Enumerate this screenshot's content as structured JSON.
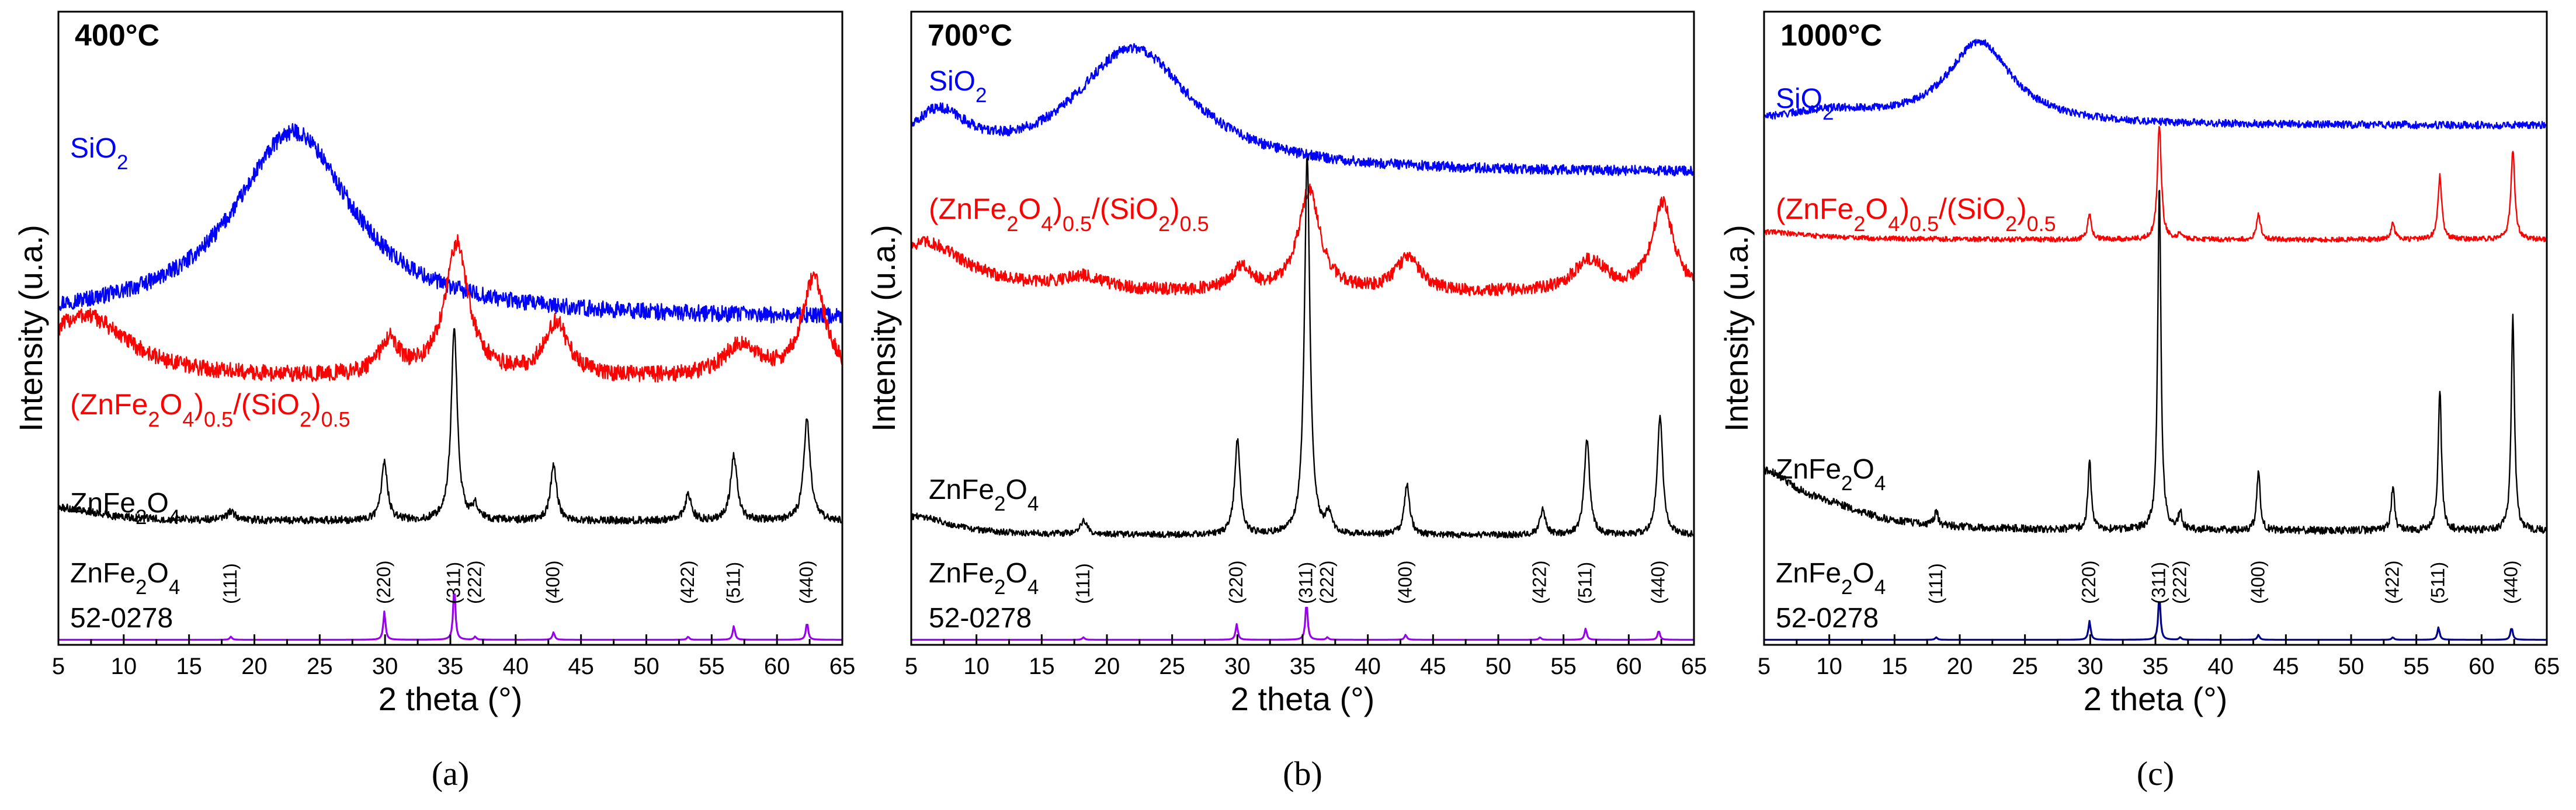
{
  "chart_data": [
    {
      "type": "line",
      "panel_label": "(a)",
      "temperature_label": "400°C",
      "xlabel": "2 theta (°)",
      "ylabel": "Intensity (u.a.)",
      "xlim": [
        5,
        65
      ],
      "x_ticks": [
        5,
        10,
        15,
        20,
        25,
        30,
        35,
        40,
        45,
        50,
        55,
        60,
        65
      ],
      "series": [
        {
          "name": "SiO2",
          "label_parts": [
            {
              "t": "SiO"
            },
            {
              "t": "2",
              "sub": true
            }
          ],
          "color": "#0000ff",
          "baseline": 0.515,
          "noise": 0.013,
          "peaks": [
            {
              "x": 23,
              "h": 0.295,
              "w": 5.5
            }
          ]
        },
        {
          "name": "(ZnFe2O4)0.5/(SiO2)0.5",
          "label_parts": [
            {
              "t": "(ZnFe"
            },
            {
              "t": "2",
              "sub": true
            },
            {
              "t": "O"
            },
            {
              "t": "4",
              "sub": true
            },
            {
              "t": ")"
            },
            {
              "t": "0.5",
              "sub": true
            },
            {
              "t": "/(SiO"
            },
            {
              "t": "2",
              "sub": true
            },
            {
              "t": ")"
            },
            {
              "t": "0.5",
              "sub": true
            }
          ],
          "color": "#ff0000",
          "baseline": 0.42,
          "noise": 0.013,
          "peaks": [
            {
              "x": 7,
              "h": 0.1,
              "w": 4
            },
            {
              "x": 30.3,
              "h": 0.055,
              "w": 0.9
            },
            {
              "x": 35.5,
              "h": 0.21,
              "w": 1.1
            },
            {
              "x": 43.1,
              "h": 0.085,
              "w": 1.1
            },
            {
              "x": 57.2,
              "h": 0.05,
              "w": 1.6
            },
            {
              "x": 62.8,
              "h": 0.155,
              "w": 1.1
            }
          ]
        },
        {
          "name": "ZnFe2O4",
          "label_parts": [
            {
              "t": "ZnFe"
            },
            {
              "t": "2",
              "sub": true
            },
            {
              "t": "O"
            },
            {
              "t": "4",
              "sub": true
            }
          ],
          "color": "#000000",
          "baseline": 0.196,
          "noise": 0.006,
          "peaks": [
            {
              "x": 5.5,
              "h": 0.02,
              "w": 3
            },
            {
              "x": 18.2,
              "h": 0.014,
              "w": 0.35
            },
            {
              "x": 29.95,
              "h": 0.093,
              "w": 0.28
            },
            {
              "x": 35.3,
              "h": 0.305,
              "w": 0.28
            },
            {
              "x": 36.9,
              "h": 0.022,
              "w": 0.28
            },
            {
              "x": 42.9,
              "h": 0.088,
              "w": 0.28
            },
            {
              "x": 53.2,
              "h": 0.04,
              "w": 0.3
            },
            {
              "x": 56.7,
              "h": 0.103,
              "w": 0.3
            },
            {
              "x": 62.3,
              "h": 0.16,
              "w": 0.3
            }
          ]
        },
        {
          "name": "ZnFe2O4 52-0278 reference",
          "color": "#9900ee",
          "baseline": 0.008,
          "noise": 0,
          "peaks": [
            {
              "x": 18.2,
              "h": 0.005,
              "w": 0.1
            },
            {
              "x": 29.95,
              "h": 0.045,
              "w": 0.1
            },
            {
              "x": 35.3,
              "h": 0.085,
              "w": 0.1
            },
            {
              "x": 36.9,
              "h": 0.005,
              "w": 0.1
            },
            {
              "x": 42.9,
              "h": 0.012,
              "w": 0.1
            },
            {
              "x": 53.2,
              "h": 0.005,
              "w": 0.1
            },
            {
              "x": 56.7,
              "h": 0.022,
              "w": 0.1
            },
            {
              "x": 62.3,
              "h": 0.028,
              "w": 0.1
            }
          ]
        }
      ],
      "reference_label_parts": [
        {
          "t": "ZnFe"
        },
        {
          "t": "2",
          "sub": true
        },
        {
          "t": "O"
        },
        {
          "t": "4",
          "sub": true
        }
      ],
      "reference_code": "52-0278",
      "reflections": [
        {
          "x": 18.2,
          "label": "(111)"
        },
        {
          "x": 29.95,
          "label": "(220)"
        },
        {
          "x": 35.3,
          "label": "(311)"
        },
        {
          "x": 36.9,
          "label": "(222)"
        },
        {
          "x": 42.9,
          "label": "(400)"
        },
        {
          "x": 53.2,
          "label": "(422)"
        },
        {
          "x": 56.7,
          "label": "(511)"
        },
        {
          "x": 62.3,
          "label": "(440)"
        }
      ]
    },
    {
      "type": "line",
      "panel_label": "(b)",
      "temperature_label": "700°C",
      "xlabel": "2 theta (°)",
      "ylabel": "Intensity (u.a.)",
      "xlim": [
        5,
        65
      ],
      "x_ticks": [
        5,
        10,
        15,
        20,
        25,
        30,
        35,
        40,
        45,
        50,
        55,
        60,
        65
      ],
      "series": [
        {
          "name": "SiO2",
          "label_parts": [
            {
              "t": "SiO"
            },
            {
              "t": "2",
              "sub": true
            }
          ],
          "color": "#0000ff",
          "baseline": 0.745,
          "noise": 0.008,
          "peaks": [
            {
              "x": 7,
              "h": 0.08,
              "w": 3
            },
            {
              "x": 22,
              "h": 0.195,
              "w": 5.5
            }
          ]
        },
        {
          "name": "(ZnFe2O4)0.5/(SiO2)0.5",
          "label_parts": [
            {
              "t": "(ZnFe"
            },
            {
              "t": "2",
              "sub": true
            },
            {
              "t": "O"
            },
            {
              "t": "4",
              "sub": true
            },
            {
              "t": ")"
            },
            {
              "t": "0.5",
              "sub": true
            },
            {
              "t": "/(SiO"
            },
            {
              "t": "2",
              "sub": true
            },
            {
              "t": ")"
            },
            {
              "t": "0.5",
              "sub": true
            }
          ],
          "color": "#ff0000",
          "baseline": 0.555,
          "noise": 0.01,
          "peaks": [
            {
              "x": 6,
              "h": 0.08,
              "w": 4
            },
            {
              "x": 18,
              "h": 0.02,
              "w": 2
            },
            {
              "x": 30.3,
              "h": 0.035,
              "w": 0.9
            },
            {
              "x": 35.5,
              "h": 0.16,
              "w": 1.0
            },
            {
              "x": 43.1,
              "h": 0.055,
              "w": 1.1
            },
            {
              "x": 57,
              "h": 0.05,
              "w": 1.5
            },
            {
              "x": 62.6,
              "h": 0.14,
              "w": 1.0
            }
          ]
        },
        {
          "name": "ZnFe2O4",
          "label_parts": [
            {
              "t": "ZnFe"
            },
            {
              "t": "2",
              "sub": true
            },
            {
              "t": "O"
            },
            {
              "t": "4",
              "sub": true
            }
          ],
          "color": "#000000",
          "baseline": 0.173,
          "noise": 0.005,
          "peaks": [
            {
              "x": 5.5,
              "h": 0.03,
              "w": 3
            },
            {
              "x": 18.2,
              "h": 0.02,
              "w": 0.35
            },
            {
              "x": 30,
              "h": 0.15,
              "w": 0.25
            },
            {
              "x": 35.35,
              "h": 0.6,
              "w": 0.25
            },
            {
              "x": 37,
              "h": 0.03,
              "w": 0.25
            },
            {
              "x": 43,
              "h": 0.08,
              "w": 0.25
            },
            {
              "x": 53.4,
              "h": 0.04,
              "w": 0.25
            },
            {
              "x": 56.8,
              "h": 0.15,
              "w": 0.25
            },
            {
              "x": 62.4,
              "h": 0.19,
              "w": 0.25
            }
          ]
        },
        {
          "name": "ZnFe2O4 52-0278 reference",
          "color": "#9900ee",
          "baseline": 0.008,
          "noise": 0,
          "peaks": [
            {
              "x": 18.2,
              "h": 0.004,
              "w": 0.1
            },
            {
              "x": 29.95,
              "h": 0.025,
              "w": 0.1
            },
            {
              "x": 35.3,
              "h": 0.06,
              "w": 0.1
            },
            {
              "x": 36.9,
              "h": 0.004,
              "w": 0.1
            },
            {
              "x": 42.9,
              "h": 0.008,
              "w": 0.1
            },
            {
              "x": 53.2,
              "h": 0.004,
              "w": 0.1
            },
            {
              "x": 56.7,
              "h": 0.018,
              "w": 0.1
            },
            {
              "x": 62.3,
              "h": 0.015,
              "w": 0.1
            }
          ]
        }
      ],
      "reference_label_parts": [
        {
          "t": "ZnFe"
        },
        {
          "t": "2",
          "sub": true
        },
        {
          "t": "O"
        },
        {
          "t": "4",
          "sub": true
        }
      ],
      "reference_code": "52-0278",
      "reflections": [
        {
          "x": 18.2,
          "label": "(111)"
        },
        {
          "x": 29.95,
          "label": "(220)"
        },
        {
          "x": 35.3,
          "label": "(311)"
        },
        {
          "x": 36.9,
          "label": "(222)"
        },
        {
          "x": 42.9,
          "label": "(400)"
        },
        {
          "x": 53.2,
          "label": "(422)"
        },
        {
          "x": 56.7,
          "label": "(511)"
        },
        {
          "x": 62.3,
          "label": "(440)"
        }
      ]
    },
    {
      "type": "line",
      "panel_label": "(c)",
      "temperature_label": "1000°C",
      "xlabel": "2 theta (°)",
      "ylabel": "Intensity (u.a.)",
      "xlim": [
        5,
        65
      ],
      "x_ticks": [
        5,
        10,
        15,
        20,
        25,
        30,
        35,
        40,
        45,
        50,
        55,
        60,
        65
      ],
      "series": [
        {
          "name": "SiO2",
          "label_parts": [
            {
              "t": "SiO"
            },
            {
              "t": "2",
              "sub": true
            }
          ],
          "color": "#0000ff",
          "baseline": 0.82,
          "noise": 0.006,
          "peaks": [
            {
              "x": 21.5,
              "h": 0.13,
              "w": 3
            },
            {
              "x": 10,
              "h": 0.02,
              "w": 5
            }
          ]
        },
        {
          "name": "(ZnFe2O4)0.5/(SiO2)0.5",
          "label_parts": [
            {
              "t": "(ZnFe"
            },
            {
              "t": "2",
              "sub": true
            },
            {
              "t": "O"
            },
            {
              "t": "4",
              "sub": true
            },
            {
              "t": ")"
            },
            {
              "t": "0.5",
              "sub": true
            },
            {
              "t": "/(SiO"
            },
            {
              "t": "2",
              "sub": true
            },
            {
              "t": ")"
            },
            {
              "t": "0.5",
              "sub": true
            }
          ],
          "color": "#ff0000",
          "baseline": 0.64,
          "noise": 0.004,
          "peaks": [
            {
              "x": 5,
              "h": 0.012,
              "w": 4
            },
            {
              "x": 29.95,
              "h": 0.04,
              "w": 0.18
            },
            {
              "x": 35.3,
              "h": 0.18,
              "w": 0.18
            },
            {
              "x": 36.9,
              "h": 0.01,
              "w": 0.18
            },
            {
              "x": 42.9,
              "h": 0.04,
              "w": 0.18
            },
            {
              "x": 53.2,
              "h": 0.025,
              "w": 0.18
            },
            {
              "x": 56.8,
              "h": 0.1,
              "w": 0.18
            },
            {
              "x": 62.4,
              "h": 0.14,
              "w": 0.18
            }
          ]
        },
        {
          "name": "ZnFe2O4",
          "label_parts": [
            {
              "t": "ZnFe"
            },
            {
              "t": "2",
              "sub": true
            },
            {
              "t": "O"
            },
            {
              "t": "4",
              "sub": true
            }
          ],
          "color": "#000000",
          "baseline": 0.18,
          "noise": 0.006,
          "peaks": [
            {
              "x": 5,
              "h": 0.085,
              "w": 3
            },
            {
              "x": 10,
              "h": 0.025,
              "w": 4
            },
            {
              "x": 18.2,
              "h": 0.02,
              "w": 0.2
            },
            {
              "x": 29.95,
              "h": 0.11,
              "w": 0.15
            },
            {
              "x": 35.3,
              "h": 0.54,
              "w": 0.15
            },
            {
              "x": 36.9,
              "h": 0.03,
              "w": 0.15
            },
            {
              "x": 42.9,
              "h": 0.095,
              "w": 0.15
            },
            {
              "x": 53.2,
              "h": 0.07,
              "w": 0.15
            },
            {
              "x": 56.8,
              "h": 0.225,
              "w": 0.15
            },
            {
              "x": 62.4,
              "h": 0.34,
              "w": 0.15
            }
          ]
        },
        {
          "name": "ZnFe2O4 52-0278 reference",
          "color": "#00008b",
          "baseline": 0.008,
          "noise": 0,
          "peaks": [
            {
              "x": 18.2,
              "h": 0.004,
              "w": 0.1
            },
            {
              "x": 29.95,
              "h": 0.03,
              "w": 0.1
            },
            {
              "x": 35.3,
              "h": 0.07,
              "w": 0.1
            },
            {
              "x": 36.9,
              "h": 0.004,
              "w": 0.1
            },
            {
              "x": 42.9,
              "h": 0.008,
              "w": 0.1
            },
            {
              "x": 53.2,
              "h": 0.004,
              "w": 0.1
            },
            {
              "x": 56.7,
              "h": 0.02,
              "w": 0.1
            },
            {
              "x": 62.3,
              "h": 0.02,
              "w": 0.1
            }
          ]
        }
      ],
      "reference_label_parts": [
        {
          "t": "ZnFe"
        },
        {
          "t": "2",
          "sub": true
        },
        {
          "t": "O"
        },
        {
          "t": "4",
          "sub": true
        }
      ],
      "reference_code": "52-0278",
      "reflections": [
        {
          "x": 18.2,
          "label": "(111)"
        },
        {
          "x": 29.95,
          "label": "(220)"
        },
        {
          "x": 35.3,
          "label": "(311)"
        },
        {
          "x": 36.9,
          "label": "(222)"
        },
        {
          "x": 42.9,
          "label": "(400)"
        },
        {
          "x": 53.2,
          "label": "(422)"
        },
        {
          "x": 56.7,
          "label": "(511)"
        },
        {
          "x": 62.3,
          "label": "(440)"
        }
      ]
    }
  ]
}
